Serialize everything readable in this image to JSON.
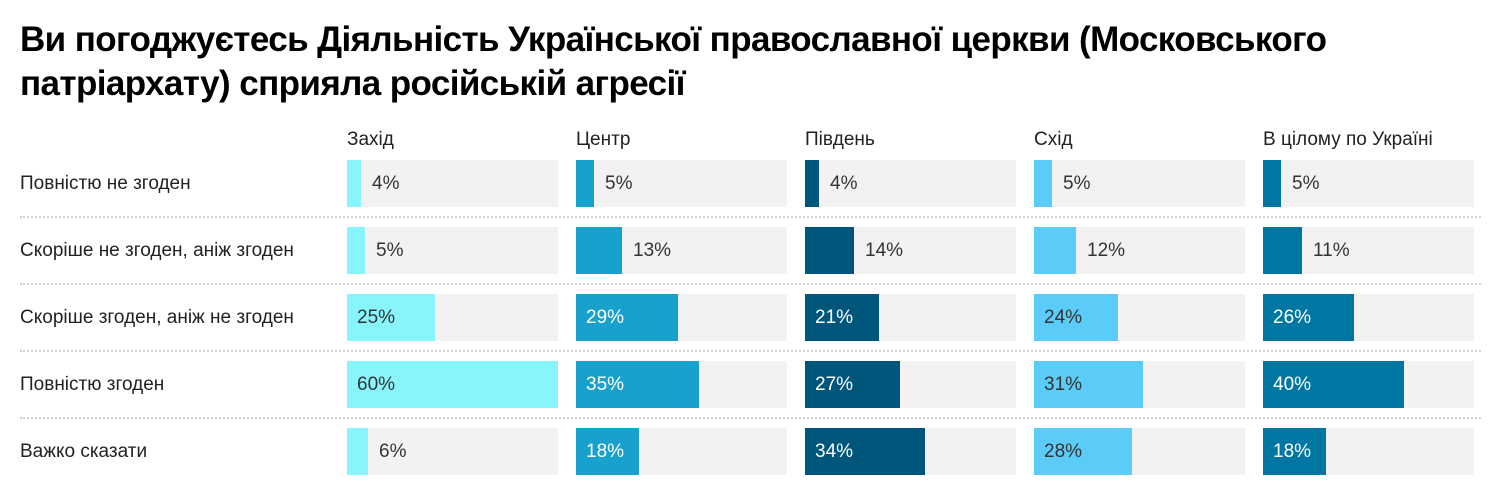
{
  "title": "Ви погоджуєтесь Діяльність Української православної церкви (Московського патріархату) сприяла російській агресії",
  "chart_data": {
    "type": "bar",
    "orientation": "horizontal",
    "layout": "small-multiples",
    "title": "Ви погоджуєтесь Діяльність Української православної церкви (Московського патріархату) сприяла російській агресії",
    "categories": [
      "Повністю не згоден",
      "Скоріше не згоден, аніж згоден",
      "Скоріше згоден, аніж не згоден",
      "Повністю згоден",
      "Важко сказати"
    ],
    "series": [
      {
        "name": "Захід",
        "color": "#88F5FC",
        "text_color": "#333333",
        "values": [
          4,
          5,
          25,
          60,
          6
        ],
        "labels": [
          "4%",
          "5%",
          "25%",
          "60%",
          "6%"
        ]
      },
      {
        "name": "Центр",
        "color": "#18A1CD",
        "text_color": "#ffffff",
        "values": [
          5,
          13,
          29,
          35,
          18
        ],
        "labels": [
          "5%",
          "13%",
          "29%",
          "35%",
          "18%"
        ]
      },
      {
        "name": "Південь",
        "color": "#00557A",
        "text_color": "#ffffff",
        "values": [
          4,
          14,
          21,
          27,
          34
        ],
        "labels": [
          "4%",
          "14%",
          "21%",
          "27%",
          "34%"
        ]
      },
      {
        "name": "Схід",
        "color": "#5BCBF7",
        "text_color": "#333333",
        "values": [
          5,
          12,
          24,
          31,
          28
        ],
        "labels": [
          "5%",
          "12%",
          "24%",
          "31%",
          "28%"
        ]
      },
      {
        "name": "В цілому по Україні",
        "color": "#0077A3",
        "text_color": "#ffffff",
        "values": [
          5,
          11,
          26,
          40,
          18
        ],
        "labels": [
          "5%",
          "11%",
          "26%",
          "40%",
          "18%"
        ]
      }
    ],
    "value_max": 60,
    "unit": "%",
    "xlabel": "",
    "ylabel": "",
    "grid": false,
    "legend": "column headers"
  },
  "colors": {
    "track": "#f2f2f2",
    "separator": "#d2d2d2",
    "outside_label": "#333333"
  }
}
